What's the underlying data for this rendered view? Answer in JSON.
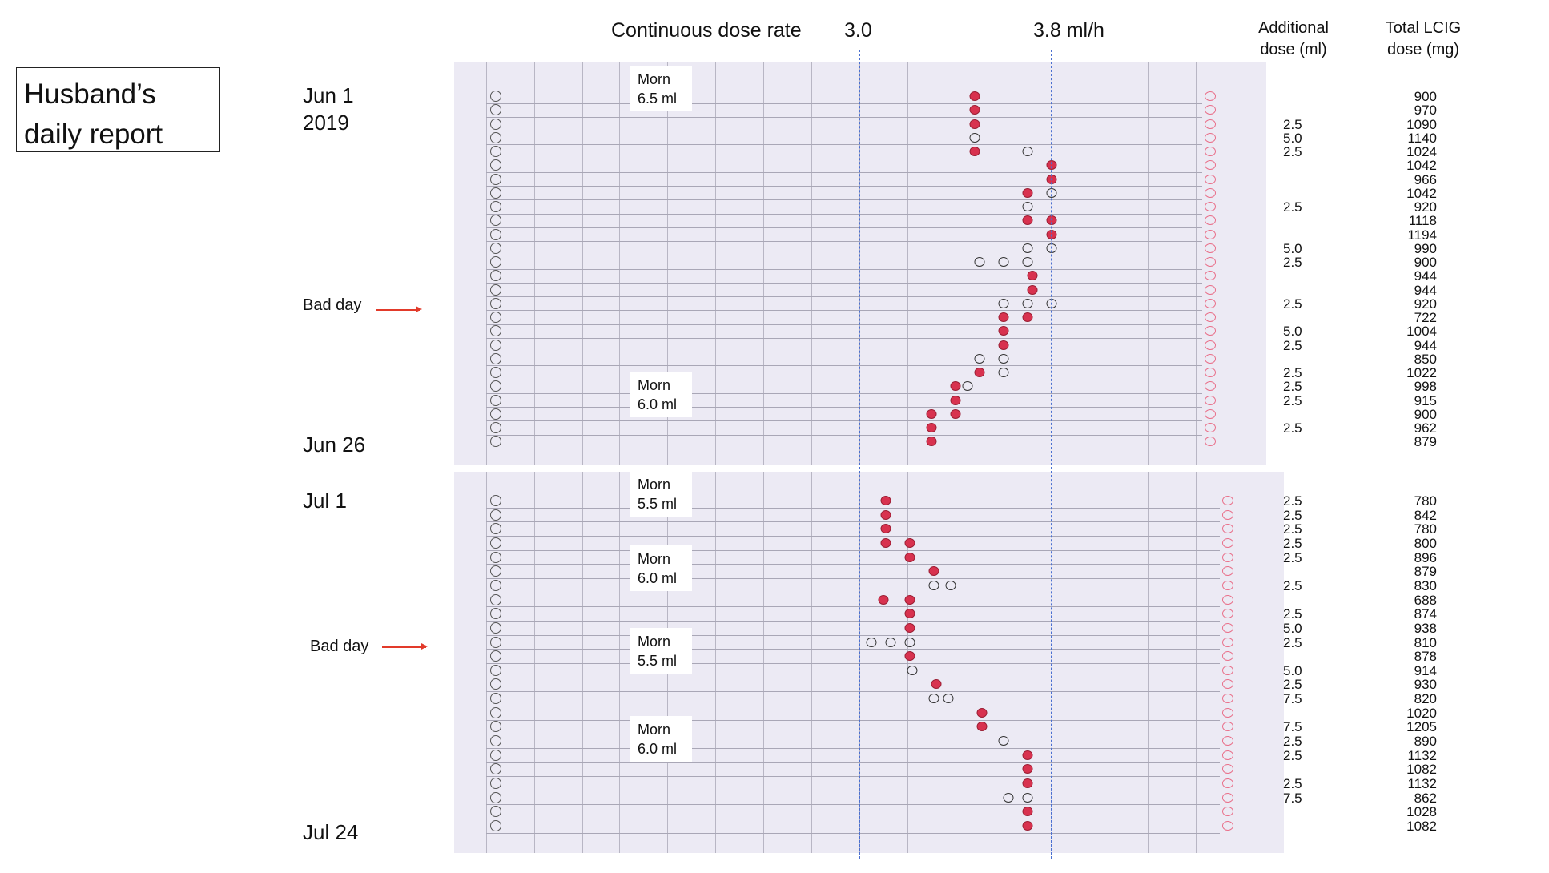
{
  "title": "Husband’s daily report",
  "header": {
    "continuous_dose_rate": "Continuous dose rate",
    "rate_low": "3.0",
    "rate_high": "3.8 ml/h",
    "additional_dose": "Additional dose (ml)",
    "total_dose": "Total LCIG dose (mg)"
  },
  "dates": {
    "jun1": "Jun 1",
    "year": "2019",
    "jun26": "Jun 26",
    "jul1": "Jul 1",
    "jul24": "Jul 24"
  },
  "bad_day_label": "Bad day",
  "morning_notes": [
    {
      "label": "Morn",
      "value": "6.5 ml"
    },
    {
      "label": "Morn",
      "value": "6.0 ml"
    },
    {
      "label": "Morn",
      "value": "5.5 ml"
    },
    {
      "label": "Morn",
      "value": "6.0 ml"
    },
    {
      "label": "Morn",
      "value": "5.5 ml"
    },
    {
      "label": "Morn",
      "value": "6.0 ml"
    }
  ],
  "colors": {
    "filled_mark": "#d8324f",
    "reference_line": "#4a6fd0",
    "arrow": "#e23a2a",
    "scan_bg": "#eceaf4"
  },
  "chart_data": {
    "type": "scatter",
    "x_axis": "Continuous dose rate (ml/h)",
    "reference_lines": [
      3.0,
      3.8
    ],
    "june": [
      {
        "additional": "",
        "total": "900",
        "marks": [
          [
            3.48,
            1
          ]
        ]
      },
      {
        "additional": "",
        "total": "970",
        "marks": [
          [
            3.48,
            1
          ]
        ]
      },
      {
        "additional": "2.5",
        "total": "1090",
        "marks": [
          [
            3.48,
            1
          ]
        ]
      },
      {
        "additional": "5.0",
        "total": "1140",
        "marks": [
          [
            3.48,
            0
          ]
        ]
      },
      {
        "additional": "2.5",
        "total": "1024",
        "marks": [
          [
            3.48,
            1
          ],
          [
            3.7,
            0
          ]
        ]
      },
      {
        "additional": "",
        "total": "1042",
        "marks": [
          [
            3.8,
            1
          ]
        ]
      },
      {
        "additional": "",
        "total": "966",
        "marks": [
          [
            3.8,
            1
          ]
        ]
      },
      {
        "additional": "",
        "total": "1042",
        "marks": [
          [
            3.7,
            1
          ],
          [
            3.8,
            0
          ]
        ]
      },
      {
        "additional": "2.5",
        "total": "920",
        "marks": [
          [
            3.7,
            0
          ]
        ]
      },
      {
        "additional": "",
        "total": "1118",
        "marks": [
          [
            3.7,
            1
          ],
          [
            3.8,
            1
          ]
        ]
      },
      {
        "additional": "",
        "total": "1194",
        "marks": [
          [
            3.8,
            1
          ]
        ]
      },
      {
        "additional": "5.0",
        "total": "990",
        "marks": [
          [
            3.7,
            0
          ],
          [
            3.8,
            0
          ]
        ]
      },
      {
        "additional": "2.5",
        "total": "900",
        "marks": [
          [
            3.5,
            0
          ],
          [
            3.6,
            0
          ],
          [
            3.7,
            0
          ]
        ]
      },
      {
        "additional": "",
        "total": "944",
        "marks": [
          [
            3.72,
            1
          ]
        ]
      },
      {
        "additional": "",
        "total": "944",
        "marks": [
          [
            3.72,
            1
          ]
        ]
      },
      {
        "additional": "2.5",
        "total": "920",
        "marks": [
          [
            3.6,
            0
          ],
          [
            3.7,
            0
          ],
          [
            3.8,
            0
          ]
        ]
      },
      {
        "additional": "",
        "total": "722",
        "marks": [
          [
            3.6,
            1
          ],
          [
            3.7,
            1
          ]
        ]
      },
      {
        "additional": "5.0",
        "total": "1004",
        "marks": [
          [
            3.6,
            1
          ]
        ]
      },
      {
        "additional": "2.5",
        "total": "944",
        "marks": [
          [
            3.6,
            1
          ]
        ]
      },
      {
        "additional": "",
        "total": "850",
        "marks": [
          [
            3.5,
            0
          ],
          [
            3.6,
            0
          ]
        ]
      },
      {
        "additional": "2.5",
        "total": "1022",
        "marks": [
          [
            3.5,
            1
          ],
          [
            3.6,
            0
          ]
        ]
      },
      {
        "additional": "2.5",
        "total": "998",
        "marks": [
          [
            3.4,
            1
          ],
          [
            3.45,
            0
          ]
        ]
      },
      {
        "additional": "2.5",
        "total": "915",
        "marks": [
          [
            3.4,
            1
          ]
        ]
      },
      {
        "additional": "",
        "total": "900",
        "marks": [
          [
            3.3,
            1
          ],
          [
            3.4,
            1
          ]
        ]
      },
      {
        "additional": "2.5",
        "total": "962",
        "marks": [
          [
            3.3,
            1
          ]
        ]
      },
      {
        "additional": "",
        "total": "879",
        "marks": [
          [
            3.3,
            1
          ]
        ]
      }
    ],
    "july": [
      {
        "additional": "2.5",
        "total": "780",
        "marks": [
          [
            3.11,
            1
          ]
        ]
      },
      {
        "additional": "2.5",
        "total": "842",
        "marks": [
          [
            3.11,
            1
          ]
        ]
      },
      {
        "additional": "2.5",
        "total": "780",
        "marks": [
          [
            3.11,
            1
          ]
        ]
      },
      {
        "additional": "2.5",
        "total": "800",
        "marks": [
          [
            3.11,
            1
          ],
          [
            3.21,
            1
          ]
        ]
      },
      {
        "additional": "2.5",
        "total": "896",
        "marks": [
          [
            3.21,
            1
          ]
        ]
      },
      {
        "additional": "",
        "total": "879",
        "marks": [
          [
            3.31,
            1
          ]
        ]
      },
      {
        "additional": "2.5",
        "total": "830",
        "marks": [
          [
            3.31,
            0
          ],
          [
            3.38,
            0
          ]
        ]
      },
      {
        "additional": "",
        "total": "688",
        "marks": [
          [
            3.1,
            1
          ],
          [
            3.21,
            1
          ]
        ]
      },
      {
        "additional": "2.5",
        "total": "874",
        "marks": [
          [
            3.21,
            1
          ]
        ]
      },
      {
        "additional": "5.0",
        "total": "938",
        "marks": [
          [
            3.21,
            1
          ]
        ]
      },
      {
        "additional": "2.5",
        "total": "810",
        "marks": [
          [
            3.05,
            0
          ],
          [
            3.13,
            0
          ],
          [
            3.21,
            0
          ]
        ]
      },
      {
        "additional": "",
        "total": "878",
        "marks": [
          [
            3.21,
            1
          ]
        ]
      },
      {
        "additional": "5.0",
        "total": "914",
        "marks": [
          [
            3.22,
            0
          ]
        ]
      },
      {
        "additional": "2.5",
        "total": "930",
        "marks": [
          [
            3.32,
            1
          ]
        ]
      },
      {
        "additional": "7.5",
        "total": "820",
        "marks": [
          [
            3.31,
            0
          ],
          [
            3.37,
            0
          ]
        ]
      },
      {
        "additional": "",
        "total": "1020",
        "marks": [
          [
            3.51,
            1
          ]
        ]
      },
      {
        "additional": "7.5",
        "total": "1205",
        "marks": [
          [
            3.51,
            1
          ]
        ]
      },
      {
        "additional": "2.5",
        "total": "890",
        "marks": [
          [
            3.6,
            0
          ]
        ]
      },
      {
        "additional": "2.5",
        "total": "1132",
        "marks": [
          [
            3.7,
            1
          ]
        ]
      },
      {
        "additional": "",
        "total": "1082",
        "marks": [
          [
            3.7,
            1
          ]
        ]
      },
      {
        "additional": "2.5",
        "total": "1132",
        "marks": [
          [
            3.7,
            1
          ]
        ]
      },
      {
        "additional": "7.5",
        "total": "862",
        "marks": [
          [
            3.62,
            0
          ],
          [
            3.7,
            0
          ]
        ]
      },
      {
        "additional": "",
        "total": "1028",
        "marks": [
          [
            3.7,
            1
          ]
        ]
      },
      {
        "additional": "",
        "total": "1082",
        "marks": [
          [
            3.7,
            1
          ]
        ]
      }
    ]
  }
}
